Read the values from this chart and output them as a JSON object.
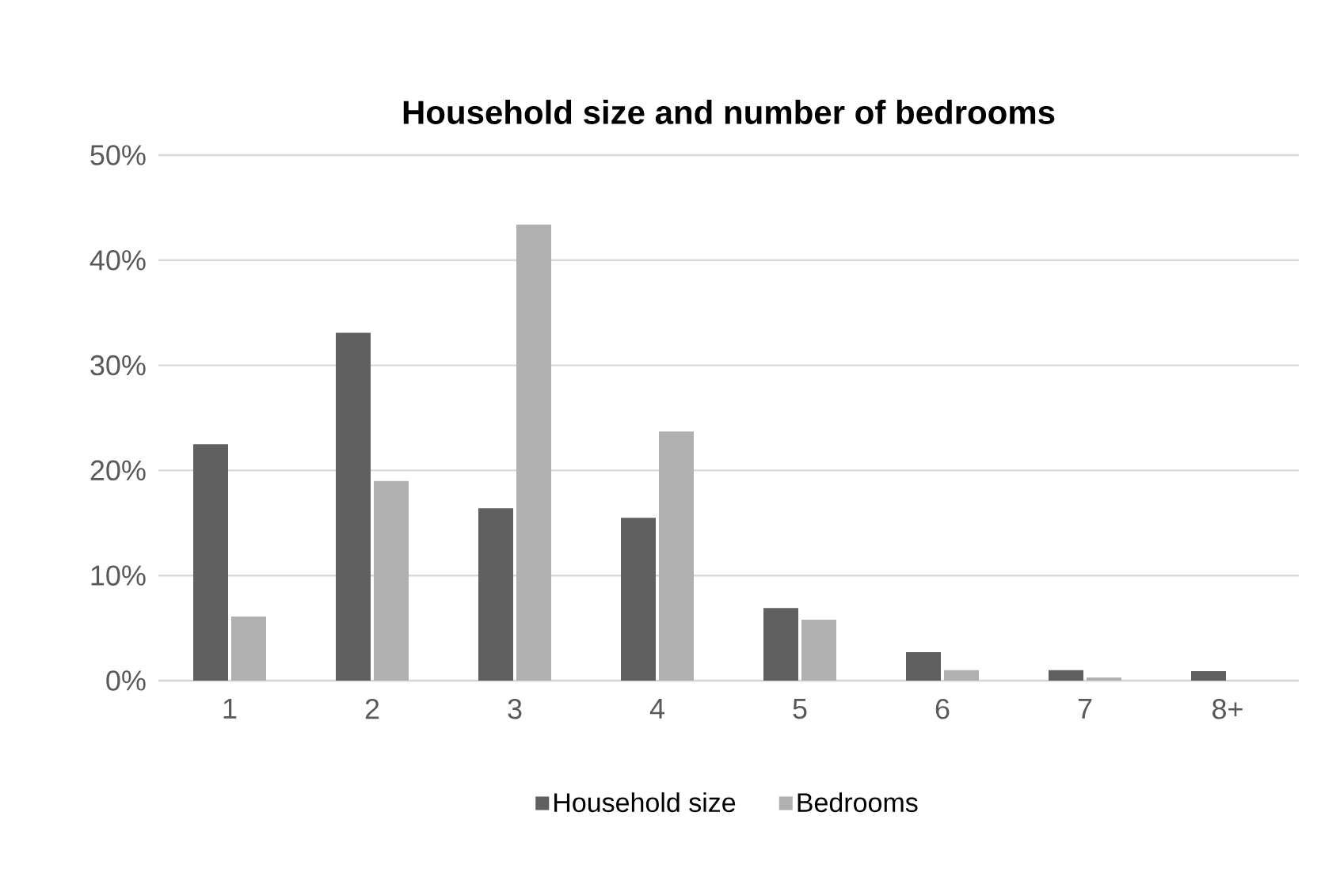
{
  "chart_data": {
    "type": "bar",
    "title": "Household size and number of bedrooms",
    "categories": [
      "1",
      "2",
      "3",
      "4",
      "5",
      "6",
      "7",
      "8+"
    ],
    "series": [
      {
        "name": "Household size",
        "color": "#606060",
        "values": [
          22.5,
          33.1,
          16.4,
          15.5,
          6.9,
          2.7,
          1.0,
          0.9
        ]
      },
      {
        "name": "Bedrooms",
        "color": "#b0b0b0",
        "values": [
          6.1,
          19.0,
          43.4,
          23.7,
          5.8,
          1.0,
          0.3,
          0
        ]
      }
    ],
    "ylim": [
      0,
      50
    ],
    "yticks": [
      {
        "value": 0,
        "label": "0%"
      },
      {
        "value": 10,
        "label": "10%"
      },
      {
        "value": 20,
        "label": "20%"
      },
      {
        "value": 30,
        "label": "30%"
      },
      {
        "value": 40,
        "label": "40%"
      },
      {
        "value": 50,
        "label": "50%"
      }
    ],
    "grid": "y",
    "legend": "bottom"
  }
}
